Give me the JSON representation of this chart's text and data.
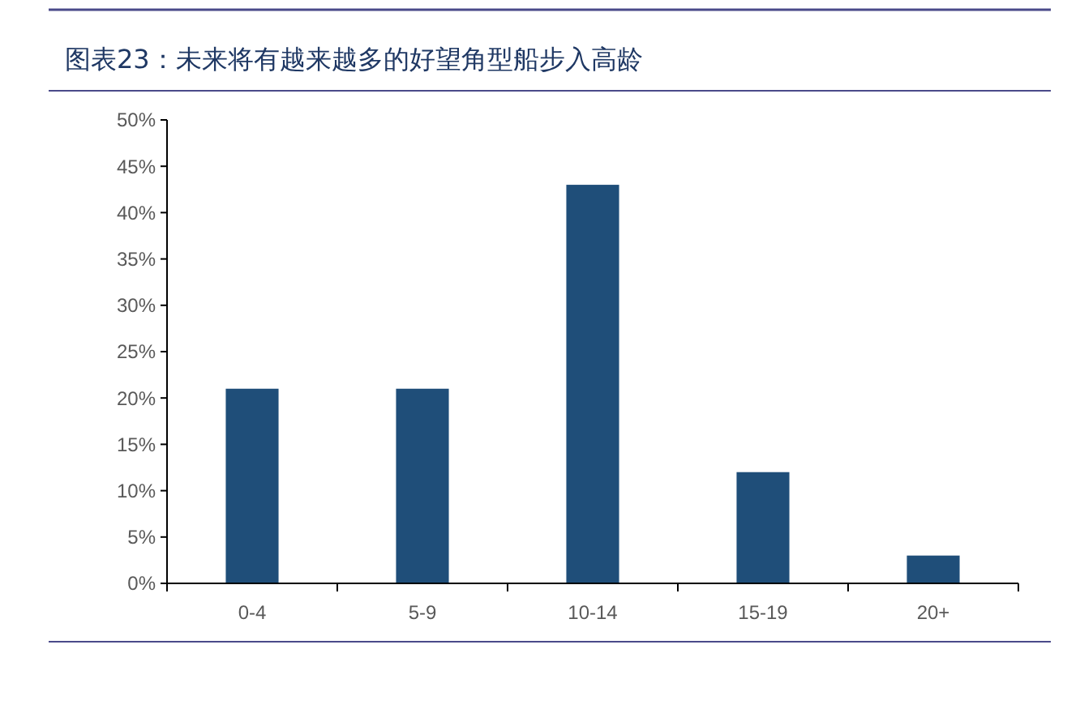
{
  "chart_data": {
    "type": "bar",
    "title": "图表23：未来将有越来越多的好望角型船步入高龄",
    "categories": [
      "0-4",
      "5-9",
      "10-14",
      "15-19",
      "20+"
    ],
    "values": [
      21,
      21,
      43,
      12,
      3
    ],
    "color": "#1f4e79",
    "ylim": [
      0,
      50
    ],
    "yticks": [
      {
        "value": 0,
        "label": "0%"
      },
      {
        "value": 5,
        "label": "5%"
      },
      {
        "value": 10,
        "label": "10%"
      },
      {
        "value": 15,
        "label": "15%"
      },
      {
        "value": 20,
        "label": "20%"
      },
      {
        "value": 25,
        "label": "25%"
      },
      {
        "value": 30,
        "label": "30%"
      },
      {
        "value": 35,
        "label": "35%"
      },
      {
        "value": 40,
        "label": "40%"
      },
      {
        "value": 45,
        "label": "45%"
      },
      {
        "value": 50,
        "label": "50%"
      }
    ],
    "grid": false
  }
}
